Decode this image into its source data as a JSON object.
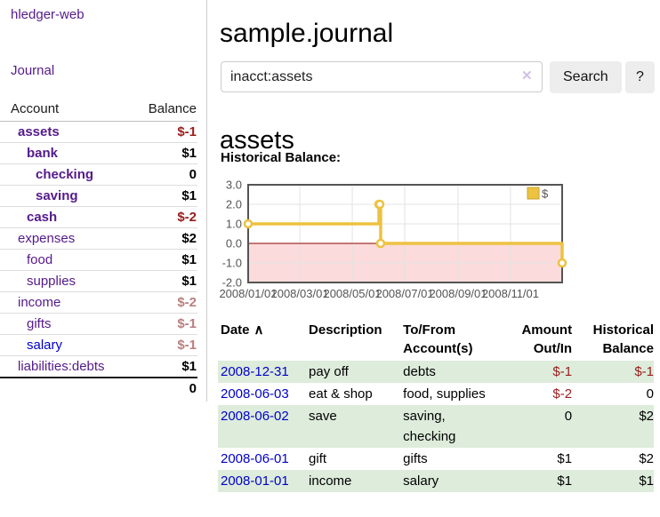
{
  "colors": {
    "link-purple": "#551a8b",
    "link-blue": "#0000cc",
    "neg-strong": "#9a1c1c",
    "neg-soft": "#b97e7e",
    "row-green": "#ddecdb",
    "btn-bg": "#ededed",
    "chart-gold": "#edc240",
    "chart-gold-dark": "#c9a32f",
    "chart-pink": "#fbdbdb",
    "zero-line": "#8b0000",
    "axis-text": "#545454",
    "grid-line": "#e3e3e3",
    "frame": "#545454"
  },
  "sidebar": {
    "app_title": "hledger-web",
    "journal_link": "Journal",
    "account_header": "Account",
    "balance_header": "Balance",
    "accounts": [
      {
        "name": "assets",
        "indent": 0,
        "bold": true,
        "balance": "$-1",
        "balance_style": "neg"
      },
      {
        "name": "bank",
        "indent": 1,
        "bold": true,
        "balance": "$1",
        "balance_style": ""
      },
      {
        "name": "checking",
        "indent": 2,
        "bold": true,
        "balance": "0",
        "balance_style": ""
      },
      {
        "name": "saving",
        "indent": 2,
        "bold": true,
        "balance": "$1",
        "balance_style": ""
      },
      {
        "name": "cash",
        "indent": 1,
        "bold": true,
        "balance": "$-2",
        "balance_style": "neg"
      },
      {
        "name": "expenses",
        "indent": 0,
        "bold": false,
        "balance": "$2",
        "balance_style": ""
      },
      {
        "name": "food",
        "indent": 1,
        "bold": false,
        "balance": "$1",
        "balance_style": ""
      },
      {
        "name": "supplies",
        "indent": 1,
        "bold": false,
        "balance": "$1",
        "balance_style": ""
      },
      {
        "name": "income",
        "indent": 0,
        "bold": false,
        "balance": "$-2",
        "balance_style": "neg-soft"
      },
      {
        "name": "gifts",
        "indent": 1,
        "bold": false,
        "balance": "$-1",
        "balance_style": "neg-soft"
      },
      {
        "name": "salary",
        "indent": 1,
        "bold": false,
        "balance": "$-1",
        "balance_style": "neg-soft",
        "link_color": "blue"
      },
      {
        "name": "liabilities:debts",
        "indent": 0,
        "bold": false,
        "balance": "$1",
        "balance_style": ""
      }
    ],
    "total": "0"
  },
  "header": {
    "title": "sample.journal"
  },
  "search": {
    "value": "inacct:assets",
    "clear_icon": "✕",
    "search_button": "Search",
    "help_button": "?"
  },
  "main": {
    "account_heading": "assets",
    "chart_label": "Historical Balance:"
  },
  "chart_data": {
    "type": "line",
    "step": true,
    "series": [
      {
        "name": "$",
        "color": "#edc240",
        "points": [
          [
            "2008-01-01",
            1
          ],
          [
            "2008-06-01",
            2
          ],
          [
            "2008-06-02",
            2
          ],
          [
            "2008-06-03",
            0
          ],
          [
            "2008-12-31",
            -1
          ]
        ]
      }
    ],
    "x_range": [
      "2008-01-01",
      "2008-12-31"
    ],
    "ylim": [
      -2,
      3
    ],
    "yticks": [
      "3.0",
      "2.0",
      "1.0",
      "0.0",
      "-1.0",
      "-2.0"
    ],
    "xticks": [
      "2008/01/01",
      "2008/03/01",
      "2008/05/01",
      "2008/07/01",
      "2008/09/01",
      "2008/11/01"
    ],
    "grid": true,
    "negative_region_fill": "#fbdbdb",
    "zero_line_color": "#8b0000",
    "legend": {
      "label": "$",
      "position": "top-right"
    }
  },
  "register": {
    "headers": {
      "date": "Date",
      "sort_icon": "∧",
      "description": "Description",
      "accounts_line1": "To/From",
      "accounts_line2": "Account(s)",
      "amount_line1": "Amount",
      "amount_line2": "Out/In",
      "balance_line1": "Historical",
      "balance_line2": "Balance"
    },
    "rows": [
      {
        "date": "2008-12-31",
        "description": "pay off",
        "accounts": "debts",
        "amount": "$-1",
        "amount_neg": true,
        "balance": "$-1",
        "balance_neg": true,
        "green": true
      },
      {
        "date": "2008-06-03",
        "description": "eat & shop",
        "accounts": "food, supplies",
        "amount": "$-2",
        "amount_neg": true,
        "balance": "0",
        "balance_neg": false,
        "green": false
      },
      {
        "date": "2008-06-02",
        "description": "save",
        "accounts": "saving, checking",
        "amount": "0",
        "amount_neg": false,
        "balance": "$2",
        "balance_neg": false,
        "green": true
      },
      {
        "date": "2008-06-01",
        "description": "gift",
        "accounts": "gifts",
        "amount": "$1",
        "amount_neg": false,
        "balance": "$2",
        "balance_neg": false,
        "green": false
      },
      {
        "date": "2008-01-01",
        "description": "income",
        "accounts": "salary",
        "amount": "$1",
        "amount_neg": false,
        "balance": "$1",
        "balance_neg": false,
        "green": true
      }
    ]
  }
}
